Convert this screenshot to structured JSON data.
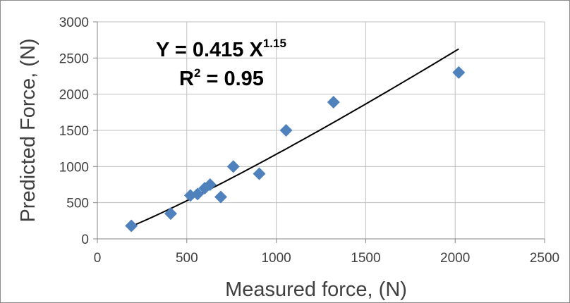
{
  "chart_data": {
    "type": "scatter",
    "xlabel": "Measured force, (N)",
    "ylabel": "Predicted Force, (N)",
    "xlim": [
      0,
      2500
    ],
    "ylim": [
      0,
      3000
    ],
    "x_ticks": [
      "0",
      "500",
      "1000",
      "1500",
      "2000",
      "2500"
    ],
    "y_ticks": [
      "0",
      "500",
      "1000",
      "1500",
      "2000",
      "2500",
      "3000"
    ],
    "grid": true,
    "series": [
      {
        "color": "#4f81bd",
        "marker": "diamond",
        "points": [
          {
            "x": 190,
            "y": 180
          },
          {
            "x": 410,
            "y": 350
          },
          {
            "x": 520,
            "y": 600
          },
          {
            "x": 560,
            "y": 620
          },
          {
            "x": 600,
            "y": 700
          },
          {
            "x": 630,
            "y": 750
          },
          {
            "x": 690,
            "y": 580
          },
          {
            "x": 760,
            "y": 1000
          },
          {
            "x": 905,
            "y": 900
          },
          {
            "x": 1055,
            "y": 1500
          },
          {
            "x": 1320,
            "y": 1890
          },
          {
            "x": 2020,
            "y": 2300
          }
        ]
      }
    ],
    "trendline": {
      "type": "power",
      "a": 0.415,
      "b": 1.15,
      "x_range": [
        190,
        2020
      ],
      "color": "#000000"
    },
    "annotations": {
      "equation_main": "Y = 0.415 X",
      "equation_exp": "1.15",
      "r2_prefix": "R",
      "r2_sup": "2",
      "r2_rest": " = 0.95"
    }
  }
}
